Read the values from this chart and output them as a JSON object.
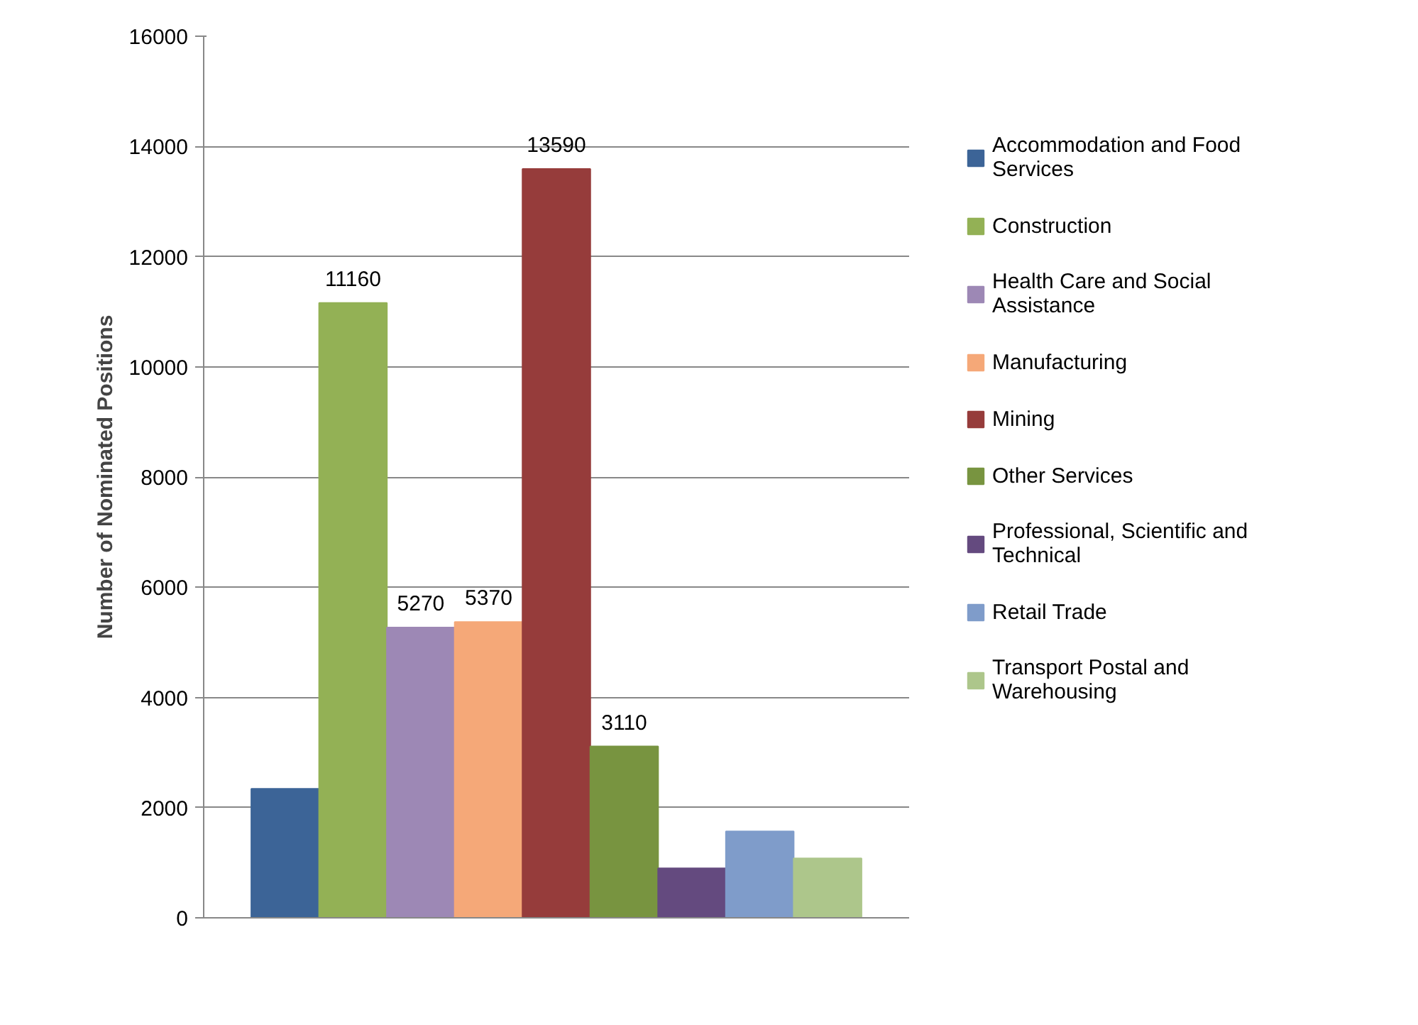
{
  "chart_data": {
    "type": "bar",
    "ylabel": "Number of Nominated Positions",
    "categories": [
      null
    ],
    "ylim": [
      0,
      16000
    ],
    "yticks": [
      0,
      2000,
      4000,
      6000,
      8000,
      10000,
      12000,
      14000,
      16000
    ],
    "grid": "y",
    "legend": "right",
    "tick_labels": "y",
    "series": [
      {
        "name": "Accommodation and Food Services",
        "color": "#3c6497",
        "values": [
          2340
        ],
        "value_labels": [
          null
        ]
      },
      {
        "name": "Construction",
        "color": "#93b155",
        "values": [
          11160
        ],
        "value_labels": [
          "11160"
        ]
      },
      {
        "name": "Health Care and Social Assistance",
        "color": "#9d88b5",
        "values": [
          5270
        ],
        "value_labels": [
          "5270"
        ]
      },
      {
        "name": "Manufacturing",
        "color": "#f5a878",
        "values": [
          5370
        ],
        "value_labels": [
          "5370"
        ]
      },
      {
        "name": "Mining",
        "color": "#963c3b",
        "values": [
          13590
        ],
        "value_labels": [
          "13590"
        ]
      },
      {
        "name": "Other Services",
        "color": "#789440",
        "values": [
          3110
        ],
        "value_labels": [
          "3110"
        ]
      },
      {
        "name": "Professional, Scientific and Technical",
        "color": "#644a7f",
        "values": [
          900
        ],
        "value_labels": [
          null
        ]
      },
      {
        "name": "Retail Trade",
        "color": "#7f9cca",
        "values": [
          1570
        ],
        "value_labels": [
          null
        ]
      },
      {
        "name": "Transport Postal and Warehousing",
        "color": "#adc68b",
        "values": [
          1080
        ],
        "value_labels": [
          null
        ]
      }
    ]
  }
}
